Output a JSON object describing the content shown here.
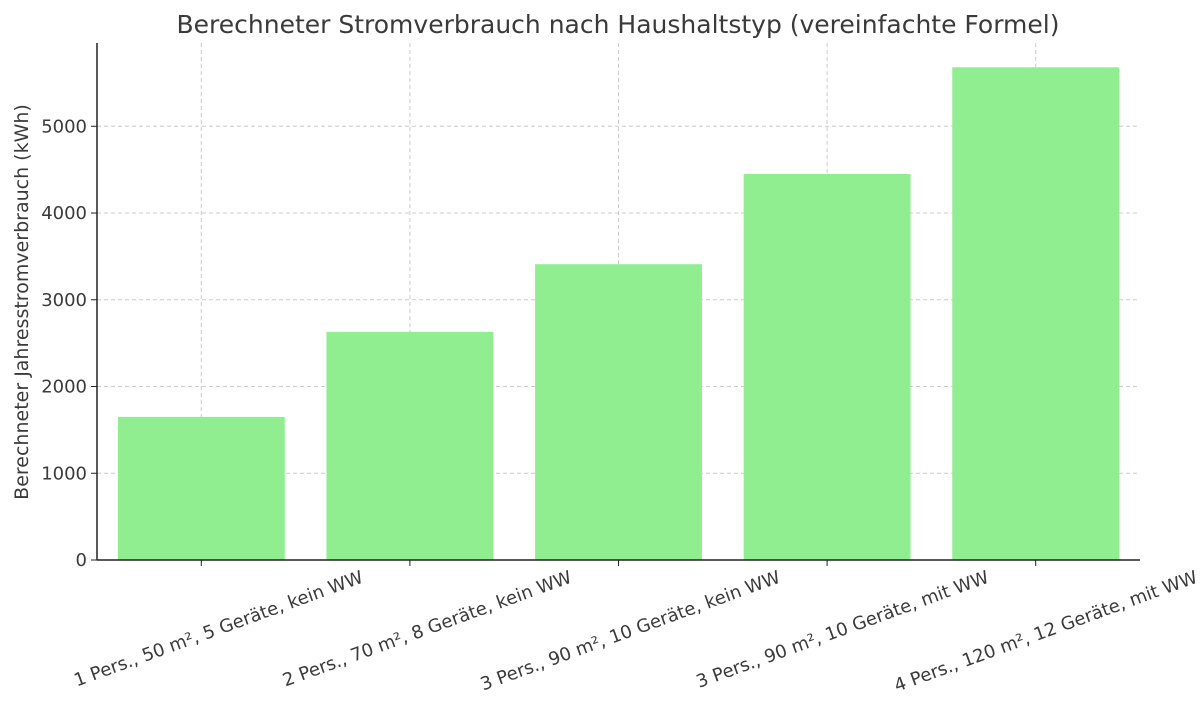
{
  "chart_data": {
    "type": "bar",
    "title": "Berechneter Stromverbrauch nach Haushaltstyp (vereinfachte Formel)",
    "xlabel": "",
    "ylabel": "Berechneter Jahresstromverbrauch (kWh)",
    "categories": [
      "1 Pers., 50 m², 5 Geräte, kein WW",
      "2 Pers., 70 m², 8 Geräte, kein WW",
      "3 Pers., 90 m², 10 Geräte, kein WW",
      "3 Pers., 90 m², 10 Geräte, mit WW",
      "4 Pers., 120 m², 12 Geräte, mit WW"
    ],
    "values": [
      1650,
      2630,
      3410,
      4450,
      5680
    ],
    "ylim": [
      0,
      5960
    ],
    "yticks": [
      0,
      1000,
      2000,
      3000,
      4000,
      5000
    ],
    "grid": true,
    "bar_color": "#90ee90"
  }
}
